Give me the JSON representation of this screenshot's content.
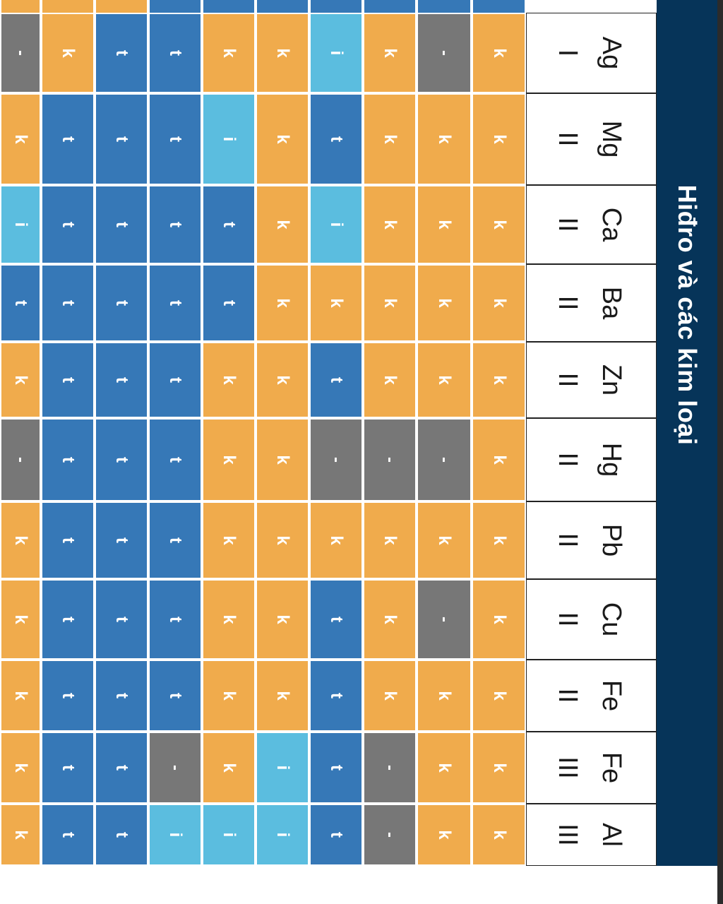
{
  "title": "Hiđro và các kim loại",
  "colors": {
    "k": "#f0ab4c",
    "t": "#3678b7",
    "i": "#5bbddf",
    "dash": "#777777",
    "title_band": "#063459",
    "header_bg": "#ffffff"
  },
  "elements": [
    {
      "symbol": "Ag",
      "valence": "I"
    },
    {
      "symbol": "Mg",
      "valence": "II"
    },
    {
      "symbol": "Ca",
      "valence": "II"
    },
    {
      "symbol": "Ba",
      "valence": "II"
    },
    {
      "symbol": "Zn",
      "valence": "II"
    },
    {
      "symbol": "Hg",
      "valence": "II"
    },
    {
      "symbol": "Pb",
      "valence": "II"
    },
    {
      "symbol": "Cu",
      "valence": "II"
    },
    {
      "symbol": "Fe",
      "valence": "II"
    },
    {
      "symbol": "Fe",
      "valence": "III"
    },
    {
      "symbol": "Al",
      "valence": "III"
    }
  ],
  "grid": [
    [
      "-",
      "k",
      "i",
      "t",
      "k",
      "-",
      "k",
      "k",
      "k",
      "k",
      "k"
    ],
    [
      "k",
      "t",
      "t",
      "t",
      "t",
      "t",
      "t",
      "t",
      "t",
      "t",
      "t"
    ],
    [
      "t",
      "t",
      "t",
      "t",
      "t",
      "t",
      "t",
      "t",
      "t",
      "t",
      "t"
    ],
    [
      "t",
      "t",
      "t",
      "t",
      "t",
      "t",
      "t",
      "t",
      "t",
      "-",
      "i"
    ],
    [
      "k",
      "i",
      "t",
      "t",
      "k",
      "k",
      "k",
      "k",
      "k",
      "k",
      "i"
    ],
    [
      "k",
      "k",
      "k",
      "k",
      "k",
      "k",
      "k",
      "k",
      "k",
      "i",
      "i"
    ],
    [
      "i",
      "t",
      "i",
      "k",
      "t",
      "-",
      "k",
      "t",
      "t",
      "t",
      "t"
    ],
    [
      "k",
      "k",
      "k",
      "k",
      "k",
      "-",
      "k",
      "k",
      "k",
      "-",
      "-"
    ],
    [
      "-",
      "k",
      "k",
      "k",
      "k",
      "-",
      "k",
      "-",
      "k",
      "k",
      "k"
    ],
    [
      "k",
      "k",
      "k",
      "k",
      "k",
      "k",
      "k",
      "k",
      "k",
      "k",
      "k"
    ]
  ]
}
